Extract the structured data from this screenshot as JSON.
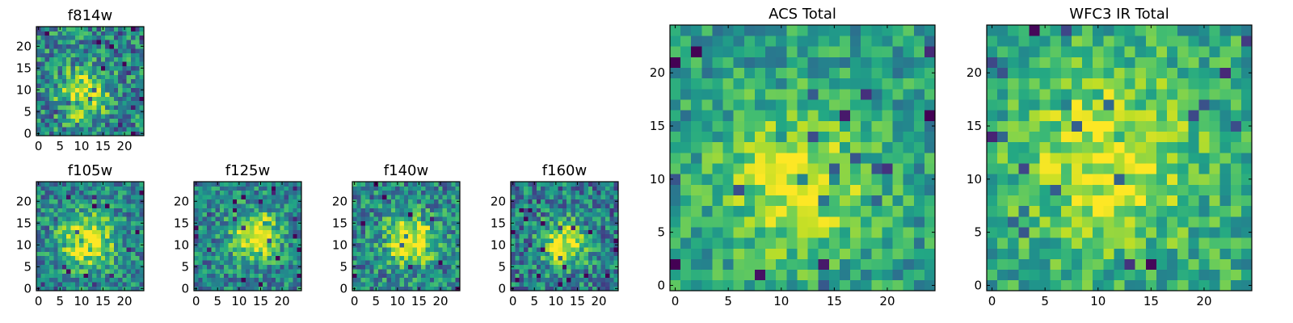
{
  "chart_data": [
    {
      "type": "heatmap",
      "title": "f814w",
      "size": 25,
      "xticks": [
        "0",
        "5",
        "10",
        "15",
        "20"
      ],
      "yticks": [
        "0",
        "5",
        "10",
        "15",
        "20"
      ],
      "xlim": [
        -0.5,
        24.5
      ],
      "ylim": [
        -0.5,
        24.5
      ],
      "colormap": "viridis",
      "seed": 11,
      "center": [
        10.5,
        9.0
      ],
      "sigma": 4.0,
      "peak": 0.55,
      "base": 0.45,
      "noise": 0.6
    },
    {
      "type": "heatmap",
      "title": "f105w",
      "size": 25,
      "xticks": [
        "0",
        "5",
        "10",
        "15",
        "20"
      ],
      "yticks": [
        "0",
        "5",
        "10",
        "15",
        "20"
      ],
      "xlim": [
        -0.5,
        24.5
      ],
      "ylim": [
        -0.5,
        24.5
      ],
      "colormap": "viridis",
      "seed": 23,
      "center": [
        11.5,
        11.0
      ],
      "sigma": 4.5,
      "peak": 0.55,
      "base": 0.45,
      "noise": 0.5
    },
    {
      "type": "heatmap",
      "title": "f125w",
      "size": 25,
      "xticks": [
        "0",
        "5",
        "10",
        "15",
        "20"
      ],
      "yticks": [
        "0",
        "5",
        "10",
        "15",
        "20"
      ],
      "xlim": [
        -0.5,
        24.5
      ],
      "ylim": [
        -0.5,
        24.5
      ],
      "colormap": "viridis",
      "seed": 37,
      "center": [
        14.0,
        12.0
      ],
      "sigma": 3.8,
      "peak": 0.6,
      "base": 0.45,
      "noise": 0.5
    },
    {
      "type": "heatmap",
      "title": "f140w",
      "size": 25,
      "xticks": [
        "0",
        "5",
        "10",
        "15",
        "20"
      ],
      "yticks": [
        "0",
        "5",
        "10",
        "15",
        "20"
      ],
      "xlim": [
        -0.5,
        24.5
      ],
      "ylim": [
        -0.5,
        24.5
      ],
      "colormap": "viridis",
      "seed": 41,
      "center": [
        13.0,
        11.0
      ],
      "sigma": 4.0,
      "peak": 0.6,
      "base": 0.45,
      "noise": 0.55
    },
    {
      "type": "heatmap",
      "title": "f160w",
      "size": 25,
      "xticks": [
        "0",
        "5",
        "10",
        "15",
        "20"
      ],
      "yticks": [
        "0",
        "5",
        "10",
        "15",
        "20"
      ],
      "xlim": [
        -0.5,
        24.5
      ],
      "ylim": [
        -0.5,
        24.5
      ],
      "colormap": "viridis",
      "seed": 53,
      "center": [
        12.0,
        10.5
      ],
      "sigma": 3.6,
      "peak": 0.6,
      "base": 0.42,
      "noise": 0.55
    },
    {
      "type": "heatmap",
      "title": "ACS Total",
      "size": 25,
      "xticks": [
        "0",
        "5",
        "10",
        "15",
        "20"
      ],
      "yticks": [
        "0",
        "5",
        "10",
        "15",
        "20"
      ],
      "xlim": [
        -0.5,
        24.5
      ],
      "ylim": [
        -0.5,
        24.5
      ],
      "colormap": "viridis",
      "seed": 67,
      "center": [
        11.5,
        9.5
      ],
      "sigma": 5.0,
      "peak": 0.4,
      "base": 0.55,
      "noise": 0.4
    },
    {
      "type": "heatmap",
      "title": "WFC3 IR Total",
      "size": 25,
      "xticks": [
        "0",
        "5",
        "10",
        "15",
        "20"
      ],
      "yticks": [
        "0",
        "5",
        "10",
        "15",
        "20"
      ],
      "xlim": [
        -0.5,
        24.5
      ],
      "ylim": [
        -0.5,
        24.5
      ],
      "colormap": "viridis",
      "seed": 79,
      "center": [
        11.0,
        12.0
      ],
      "sigma": 5.5,
      "peak": 0.35,
      "base": 0.6,
      "noise": 0.4
    }
  ]
}
